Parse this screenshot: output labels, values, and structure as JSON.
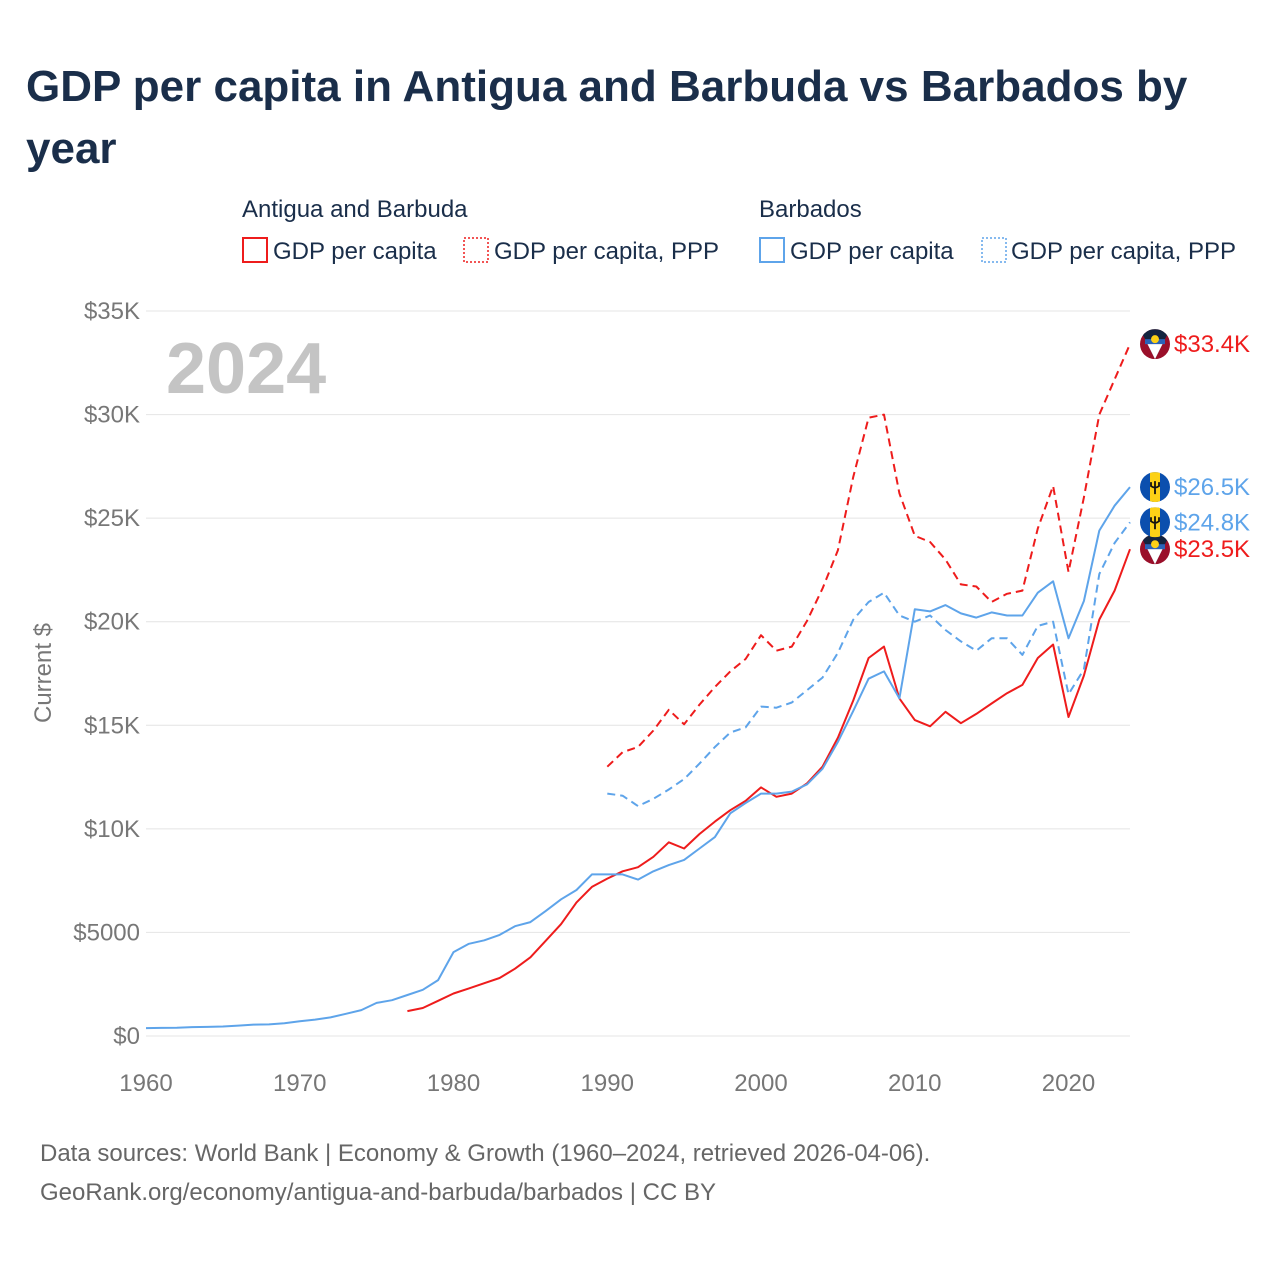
{
  "title": "GDP per capita in Antigua and Barbuda vs Barbados by year",
  "year_watermark": "2024",
  "footer": {
    "line1": "Data sources: World Bank | Economy & Growth (1960–2024, retrieved 2026-04-06).",
    "line2": "GeoRank.org/economy/antigua-and-barbuda/barbados | CC BY"
  },
  "legend": {
    "groups": [
      {
        "name": "Antigua and Barbuda",
        "items": [
          "GDP per capita",
          "GDP per capita, PPP"
        ]
      },
      {
        "name": "Barbados",
        "items": [
          "GDP per capita",
          "GDP per capita, PPP"
        ]
      }
    ]
  },
  "chart_data": {
    "type": "line",
    "title": "GDP per capita in Antigua and Barbuda vs Barbados by year",
    "xlabel": "",
    "ylabel": "Current $",
    "xlim": [
      1960,
      2024
    ],
    "ylim": [
      0,
      35000
    ],
    "x_ticks": [
      1960,
      1970,
      1980,
      1990,
      2000,
      2010,
      2020
    ],
    "x_tick_labels": [
      "1960",
      "1970",
      "1980",
      "1990",
      "2000",
      "2010",
      "2020"
    ],
    "y_ticks": [
      0,
      5000,
      10000,
      15000,
      20000,
      25000,
      30000,
      35000
    ],
    "y_tick_labels": [
      "$0",
      "$5000",
      "$10K",
      "$15K",
      "$20K",
      "$25K",
      "$30K",
      "$35K"
    ],
    "grid": true,
    "legend_position": "top",
    "series": [
      {
        "name": "Antigua and Barbuda – GDP per capita",
        "country": "Antigua and Barbuda",
        "color": "#ee1c1c",
        "dash": false,
        "start": 1977,
        "values": [
          1200,
          1350,
          1700,
          2050,
          2300,
          2550,
          2800,
          3250,
          3800,
          4600,
          5400,
          6450,
          7200,
          7600,
          7950,
          8150,
          8650,
          9350,
          9050,
          9750,
          10350,
          10900,
          11350,
          12000,
          11550,
          11700,
          12200,
          13000,
          14400,
          16200,
          18250,
          18800,
          16300,
          15250,
          14950,
          15650,
          15100,
          15550,
          16050,
          16550,
          16950,
          18250,
          18900,
          15400,
          17400,
          20100,
          21500,
          23500
        ],
        "end_label": "$23.5K"
      },
      {
        "name": "Antigua and Barbuda – GDP per capita, PPP",
        "country": "Antigua and Barbuda",
        "color": "#ee1c1c",
        "dash": true,
        "start": 1990,
        "values": [
          13000,
          13700,
          13950,
          14750,
          15750,
          15050,
          16000,
          16850,
          17600,
          18200,
          19350,
          18600,
          18800,
          20050,
          21600,
          23450,
          27000,
          29850,
          30000,
          26200,
          24150,
          23850,
          23000,
          21800,
          21700,
          20950,
          21350,
          21500,
          24500,
          26550,
          22400,
          26000,
          30000,
          31700,
          33400
        ],
        "end_label": "$33.4K"
      },
      {
        "name": "Barbados – GDP per capita",
        "country": "Barbados",
        "color": "#5ea4ea",
        "dash": false,
        "start": 1960,
        "values": [
          380,
          390,
          400,
          430,
          440,
          460,
          500,
          550,
          560,
          620,
          710,
          790,
          900,
          1070,
          1250,
          1600,
          1730,
          1980,
          2230,
          2700,
          4050,
          4450,
          4620,
          4880,
          5300,
          5500,
          6040,
          6600,
          7050,
          7800,
          7800,
          7800,
          7550,
          7950,
          8250,
          8500,
          9050,
          9600,
          10750,
          11250,
          11700,
          11700,
          11800,
          12150,
          12900,
          14200,
          15700,
          17250,
          17600,
          16300,
          20600,
          20500,
          20800,
          20400,
          20200,
          20450,
          20300,
          20300,
          21400,
          21950,
          19200,
          21000,
          24400,
          25600,
          26500
        ],
        "end_label": "$26.5K"
      },
      {
        "name": "Barbados – GDP per capita, PPP",
        "country": "Barbados",
        "color": "#5ea4ea",
        "dash": true,
        "start": 1990,
        "values": [
          11700,
          11600,
          11100,
          11450,
          11900,
          12400,
          13150,
          13950,
          14650,
          14900,
          15900,
          15850,
          16100,
          16700,
          17300,
          18500,
          20100,
          20950,
          21400,
          20300,
          20000,
          20300,
          19600,
          19050,
          18600,
          19200,
          19200,
          18400,
          19800,
          20000,
          16500,
          17700,
          22300,
          23800,
          24800
        ],
        "end_label": "$24.8K"
      }
    ]
  }
}
